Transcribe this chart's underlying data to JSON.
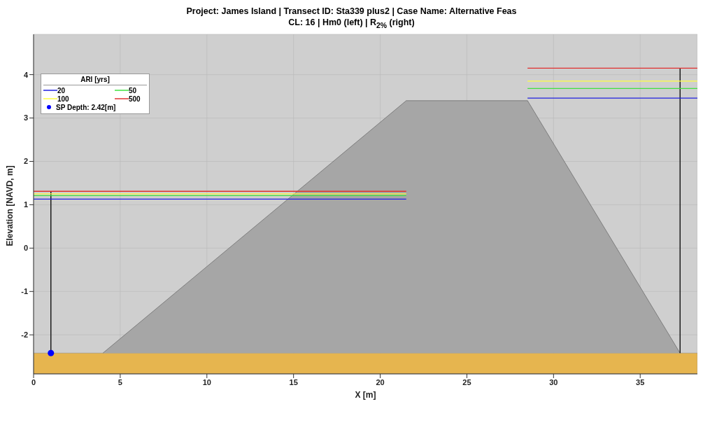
{
  "chart_data": {
    "type": "line",
    "title": "Project: James Island | Transect ID: Sta339 plus2 | Case Name: Alternative Feas",
    "subtitle": "CL: 16 | Hm0 (left) | R$_{2%}$ (right)",
    "xlabel": "X [m]",
    "ylabel": "Elevation [NAVD, m]",
    "legend_title": "ARI [yrs]",
    "legend": "top left",
    "grid": true,
    "marker": "none",
    "line_style": "solid",
    "xlim": [
      0,
      38.3
    ],
    "xticks": [
      0,
      5,
      10,
      15,
      20,
      25,
      30,
      35
    ],
    "ylim": [
      -2.9,
      4.93
    ],
    "yticks": [
      -2,
      -1,
      0,
      1,
      2,
      3,
      4
    ],
    "bands": [
      {
        "axis": "y",
        "from": -2.9,
        "to": -2.42,
        "color": "#e6b54f"
      }
    ],
    "series": [
      {
        "type": "area",
        "color": "#a6a6a6",
        "x": [
          4,
          21.5,
          28.5,
          37.3
        ],
        "values": [
          -2.42,
          3.4,
          3.4,
          -2.42
        ]
      },
      {
        "color": "#000000",
        "x": [
          1,
          1
        ],
        "values": [
          -2.42,
          1.31
        ]
      },
      {
        "color": "#000000",
        "x": [
          37.3,
          37.3
        ],
        "values": [
          -2.42,
          4.15
        ]
      },
      {
        "name": "20",
        "color": "#2020e0",
        "x": [
          0,
          21.5
        ],
        "values": [
          1.13,
          1.13
        ]
      },
      {
        "name": "50",
        "color": "#40e040",
        "x": [
          0,
          21.5
        ],
        "values": [
          1.21,
          1.21
        ]
      },
      {
        "name": "100",
        "color": "#ffff40",
        "x": [
          0,
          21.5
        ],
        "values": [
          1.25,
          1.25
        ]
      },
      {
        "name": "500",
        "color": "#e03030",
        "x": [
          0,
          21.5
        ],
        "values": [
          1.31,
          1.31
        ]
      },
      {
        "color": "#2020e0",
        "x": [
          28.5,
          38.3
        ],
        "values": [
          3.46,
          3.46
        ]
      },
      {
        "color": "#40e040",
        "x": [
          28.5,
          38.3
        ],
        "values": [
          3.68,
          3.68
        ]
      },
      {
        "color": "#ffff40",
        "x": [
          28.5,
          38.3
        ],
        "values": [
          3.85,
          3.85
        ]
      },
      {
        "color": "#e03030",
        "x": [
          28.5,
          38.3
        ],
        "values": [
          4.15,
          4.15
        ]
      },
      {
        "type": "scatter",
        "name": "SP Depth: 2.42[m]",
        "color": "#0000ff",
        "marker": "circle",
        "x": [
          1
        ],
        "values": [
          -2.42
        ]
      }
    ]
  }
}
